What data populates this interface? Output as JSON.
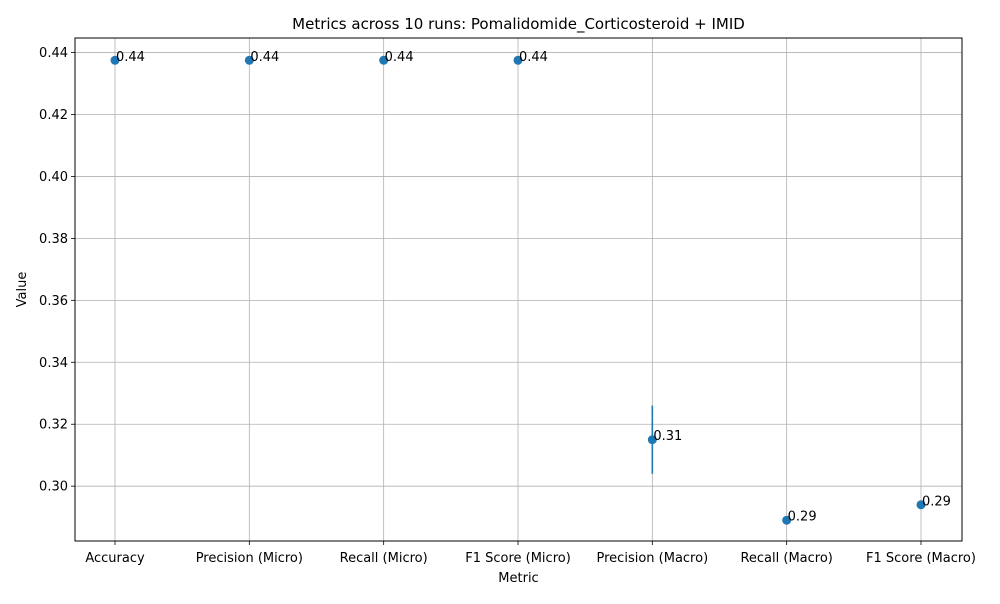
{
  "chart_data": {
    "type": "scatter",
    "title": "Metrics across 10 runs: Pomalidomide_Corticosteroid + IMID",
    "xlabel": "Metric",
    "ylabel": "Value",
    "categories": [
      "Accuracy",
      "Precision (Micro)",
      "Recall (Micro)",
      "F1 Score (Micro)",
      "Precision (Macro)",
      "Recall (Macro)",
      "F1 Score (Macro)"
    ],
    "values": [
      0.4375,
      0.4375,
      0.4375,
      0.4375,
      0.315,
      0.289,
      0.294
    ],
    "errors": [
      0,
      0,
      0,
      0,
      0.011,
      0,
      0
    ],
    "data_labels": [
      "0.44",
      "0.44",
      "0.44",
      "0.44",
      "0.31",
      "0.29",
      "0.29"
    ],
    "ylim": [
      0.2823,
      0.4447
    ],
    "yticks": [
      0.3,
      0.32,
      0.34,
      0.36,
      0.38,
      0.4,
      0.42,
      0.44
    ],
    "ytick_labels": [
      "0.30",
      "0.32",
      "0.34",
      "0.36",
      "0.38",
      "0.40",
      "0.42",
      "0.44"
    ],
    "grid": true,
    "color": "#1f77b4"
  }
}
